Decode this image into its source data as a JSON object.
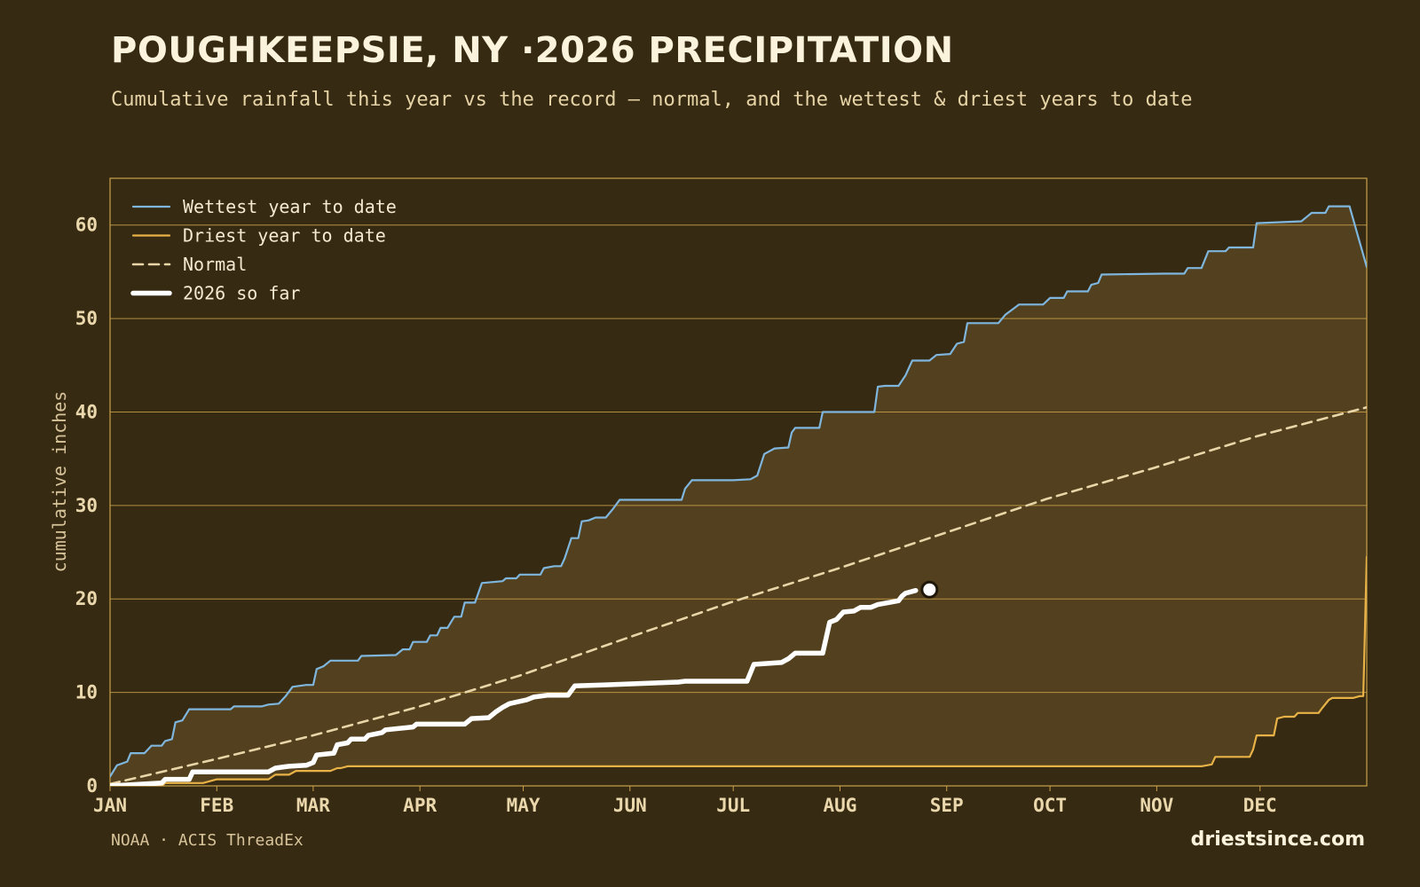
{
  "header": {
    "title": "POUGHKEEPSIE, NY ·2026 PRECIPITATION",
    "subtitle": "Cumulative rainfall this year vs the record — normal, and the wettest & driest years to date"
  },
  "footer": {
    "source": "NOAA · ACIS ThreadEx",
    "site": "driestsince.com"
  },
  "colors": {
    "background": "#372a13",
    "band_fill": "#52401e",
    "grid": "#c9a24a",
    "wettest": "#7fb6de",
    "driest": "#e8b247",
    "normal": "#e9d6a8",
    "current": "#ffffff"
  },
  "chart_data": {
    "type": "line",
    "title": "POUGHKEEPSIE, NY ·2026 PRECIPITATION",
    "ylabel": "cumulative inches",
    "xlabel": "",
    "x_unit": "day of year",
    "xlim": [
      1,
      366
    ],
    "ylim": [
      0,
      65
    ],
    "yticks": [
      0,
      10,
      20,
      30,
      40,
      50,
      60
    ],
    "xticks": [
      {
        "label": "JAN",
        "day": 1
      },
      {
        "label": "FEB",
        "day": 32
      },
      {
        "label": "MAR",
        "day": 60
      },
      {
        "label": "APR",
        "day": 91
      },
      {
        "label": "MAY",
        "day": 121
      },
      {
        "label": "JUN",
        "day": 152
      },
      {
        "label": "JUL",
        "day": 182
      },
      {
        "label": "AUG",
        "day": 213
      },
      {
        "label": "SEP",
        "day": 244
      },
      {
        "label": "OCT",
        "day": 274
      },
      {
        "label": "NOV",
        "day": 305
      },
      {
        "label": "DEC",
        "day": 335
      }
    ],
    "grid": true,
    "legend_position": "top-left",
    "shaded_band": "between wettest and driest year to date",
    "series": [
      {
        "name": "Wettest year to date",
        "style": "solid",
        "color": "#7fb6de",
        "points": [
          [
            1,
            1.0
          ],
          [
            3,
            2.2
          ],
          [
            6,
            2.6
          ],
          [
            7,
            3.5
          ],
          [
            11,
            3.5
          ],
          [
            13,
            4.3
          ],
          [
            16,
            4.3
          ],
          [
            17,
            4.8
          ],
          [
            19,
            5.0
          ],
          [
            20,
            6.8
          ],
          [
            22,
            7.0
          ],
          [
            24,
            8.2
          ],
          [
            36,
            8.2
          ],
          [
            37,
            8.5
          ],
          [
            45,
            8.5
          ],
          [
            47,
            8.7
          ],
          [
            50,
            8.8
          ],
          [
            52,
            9.6
          ],
          [
            54,
            10.6
          ],
          [
            58,
            10.8
          ],
          [
            60,
            10.8
          ],
          [
            61,
            12.5
          ],
          [
            63,
            12.8
          ],
          [
            65,
            13.4
          ],
          [
            73,
            13.4
          ],
          [
            74,
            13.9
          ],
          [
            84,
            14.0
          ],
          [
            86,
            14.6
          ],
          [
            88,
            14.6
          ],
          [
            89,
            15.4
          ],
          [
            93,
            15.4
          ],
          [
            94,
            16.1
          ],
          [
            96,
            16.1
          ],
          [
            97,
            16.9
          ],
          [
            99,
            16.9
          ],
          [
            101,
            18.1
          ],
          [
            103,
            18.1
          ],
          [
            104,
            19.6
          ],
          [
            107,
            19.6
          ],
          [
            109,
            21.7
          ],
          [
            115,
            21.9
          ],
          [
            116,
            22.2
          ],
          [
            119,
            22.2
          ],
          [
            120,
            22.6
          ],
          [
            126,
            22.6
          ],
          [
            127,
            23.3
          ],
          [
            130,
            23.5
          ],
          [
            132,
            23.5
          ],
          [
            133,
            24.3
          ],
          [
            135,
            26.5
          ],
          [
            137,
            26.5
          ],
          [
            138,
            28.3
          ],
          [
            140,
            28.4
          ],
          [
            142,
            28.7
          ],
          [
            145,
            28.7
          ],
          [
            147,
            29.6
          ],
          [
            148,
            30.1
          ],
          [
            149,
            30.6
          ],
          [
            167,
            30.6
          ],
          [
            168,
            31.8
          ],
          [
            170,
            32.7
          ],
          [
            182,
            32.7
          ],
          [
            187,
            32.8
          ],
          [
            189,
            33.2
          ],
          [
            191,
            35.5
          ],
          [
            193,
            35.9
          ],
          [
            194,
            36.1
          ],
          [
            198,
            36.2
          ],
          [
            199,
            37.8
          ],
          [
            200,
            38.3
          ],
          [
            207,
            38.3
          ],
          [
            208,
            40.0
          ],
          [
            223,
            40.0
          ],
          [
            224,
            42.7
          ],
          [
            226,
            42.8
          ],
          [
            230,
            42.8
          ],
          [
            232,
            43.9
          ],
          [
            234,
            45.5
          ],
          [
            239,
            45.5
          ],
          [
            241,
            46.1
          ],
          [
            245,
            46.2
          ],
          [
            247,
            47.3
          ],
          [
            249,
            47.5
          ],
          [
            250,
            49.5
          ],
          [
            259,
            49.5
          ],
          [
            261,
            50.4
          ],
          [
            265,
            51.5
          ],
          [
            272,
            51.5
          ],
          [
            274,
            52.2
          ],
          [
            278,
            52.2
          ],
          [
            279,
            52.9
          ],
          [
            285,
            52.9
          ],
          [
            286,
            53.6
          ],
          [
            288,
            53.8
          ],
          [
            289,
            54.7
          ],
          [
            307,
            54.8
          ],
          [
            313,
            54.8
          ],
          [
            314,
            55.4
          ],
          [
            318,
            55.4
          ],
          [
            320,
            57.2
          ],
          [
            325,
            57.2
          ],
          [
            326,
            57.6
          ],
          [
            333,
            57.6
          ],
          [
            334,
            60.2
          ],
          [
            347,
            60.4
          ],
          [
            349,
            61.0
          ],
          [
            350,
            61.3
          ],
          [
            354,
            61.3
          ],
          [
            355,
            62.0
          ],
          [
            361,
            62.0
          ],
          [
            366,
            55.5
          ]
        ]
      },
      {
        "name": "Driest year to date",
        "style": "solid",
        "color": "#e8b247",
        "points": [
          [
            1,
            0
          ],
          [
            16,
            0
          ],
          [
            17,
            0.3
          ],
          [
            28,
            0.3
          ],
          [
            32,
            0.7
          ],
          [
            47,
            0.7
          ],
          [
            49,
            1.2
          ],
          [
            53,
            1.2
          ],
          [
            55,
            1.6
          ],
          [
            65,
            1.6
          ],
          [
            67,
            1.9
          ],
          [
            68,
            1.9
          ],
          [
            70,
            2.1
          ],
          [
            318,
            2.1
          ],
          [
            321,
            2.3
          ],
          [
            322,
            3.1
          ],
          [
            332,
            3.1
          ],
          [
            333,
            3.9
          ],
          [
            334,
            5.4
          ],
          [
            339,
            5.4
          ],
          [
            340,
            7.2
          ],
          [
            342,
            7.4
          ],
          [
            345,
            7.4
          ],
          [
            346,
            7.8
          ],
          [
            352,
            7.8
          ],
          [
            353,
            8.3
          ],
          [
            355,
            9.2
          ],
          [
            356,
            9.4
          ],
          [
            362,
            9.4
          ],
          [
            364,
            9.6
          ],
          [
            365,
            9.6
          ],
          [
            366,
            24.5
          ]
        ]
      },
      {
        "name": "Normal",
        "style": "dashed",
        "color": "#e9d6a8",
        "points": [
          [
            1,
            0.2
          ],
          [
            31,
            2.8
          ],
          [
            59,
            5.3
          ],
          [
            90,
            8.4
          ],
          [
            120,
            11.8
          ],
          [
            151,
            15.8
          ],
          [
            181,
            19.6
          ],
          [
            212,
            23.2
          ],
          [
            243,
            27.0
          ],
          [
            273,
            30.7
          ],
          [
            304,
            34.0
          ],
          [
            334,
            37.4
          ],
          [
            366,
            40.5
          ]
        ]
      },
      {
        "name": "2026 so far",
        "style": "solid-thick",
        "color": "#ffffff",
        "points": [
          [
            1,
            0
          ],
          [
            16,
            0.3
          ],
          [
            17,
            0.7
          ],
          [
            24,
            0.7
          ],
          [
            25,
            1.5
          ],
          [
            47,
            1.5
          ],
          [
            49,
            1.9
          ],
          [
            51,
            2.0
          ],
          [
            53,
            2.1
          ],
          [
            58,
            2.2
          ],
          [
            60,
            2.5
          ],
          [
            61,
            3.3
          ],
          [
            66,
            3.5
          ],
          [
            67,
            4.4
          ],
          [
            70,
            4.6
          ],
          [
            71,
            5.0
          ],
          [
            75,
            5.0
          ],
          [
            76,
            5.4
          ],
          [
            80,
            5.7
          ],
          [
            81,
            6.0
          ],
          [
            89,
            6.3
          ],
          [
            90,
            6.6
          ],
          [
            104,
            6.6
          ],
          [
            106,
            7.2
          ],
          [
            111,
            7.3
          ],
          [
            113,
            7.9
          ],
          [
            115,
            8.4
          ],
          [
            117,
            8.8
          ],
          [
            122,
            9.2
          ],
          [
            124,
            9.5
          ],
          [
            128,
            9.7
          ],
          [
            134,
            9.7
          ],
          [
            136,
            10.7
          ],
          [
            144,
            10.8
          ],
          [
            166,
            11.1
          ],
          [
            168,
            11.2
          ],
          [
            186,
            11.2
          ],
          [
            188,
            13.0
          ],
          [
            196,
            13.2
          ],
          [
            198,
            13.6
          ],
          [
            200,
            14.2
          ],
          [
            208,
            14.2
          ],
          [
            210,
            17.5
          ],
          [
            212,
            17.8
          ],
          [
            214,
            18.6
          ],
          [
            217,
            18.7
          ],
          [
            219,
            19.1
          ],
          [
            222,
            19.1
          ],
          [
            224,
            19.4
          ],
          [
            227,
            19.6
          ],
          [
            230,
            19.8
          ],
          [
            231,
            20.3
          ],
          [
            232,
            20.6
          ],
          [
            235,
            20.9
          ]
        ]
      }
    ]
  }
}
